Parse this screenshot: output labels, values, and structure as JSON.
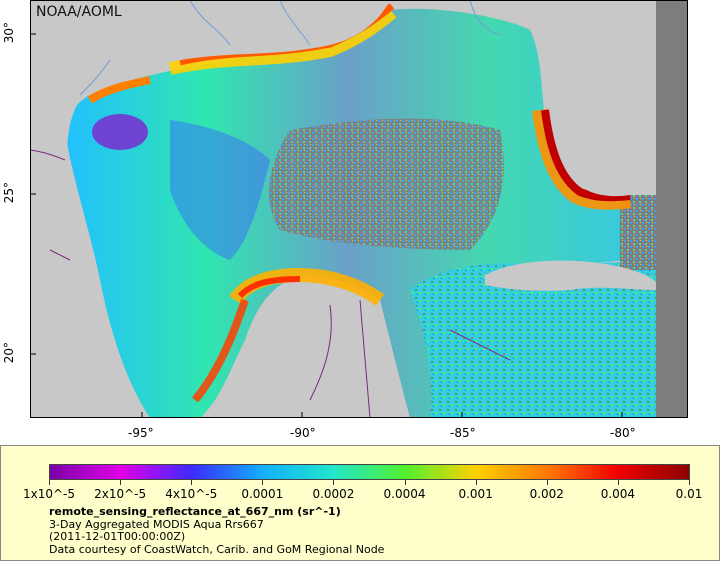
{
  "map": {
    "watermark": "NOAA/AOML",
    "lon_ticks": [
      "-95°",
      "-90°",
      "-85°",
      "-80°"
    ],
    "lat_ticks": [
      "30°",
      "25°",
      "20°"
    ],
    "land_color": "#c8c8c8",
    "no_data_color": "#7d7d7d",
    "boundary_color": "#7a2a7a",
    "river_color": "#6f9fd8"
  },
  "colorbar": {
    "labels": [
      "1x10^-5",
      "2x10^-5",
      "4x10^-5",
      "0.0001",
      "0.0002",
      "0.0004",
      "0.001",
      "0.002",
      "0.004",
      "0.01"
    ],
    "colors": [
      "#7b00a8",
      "#e000e8",
      "#3a2cff",
      "#14b0ff",
      "#22e6c8",
      "#52f030",
      "#ffd000",
      "#ff7a00",
      "#f00000",
      "#8c0000"
    ]
  },
  "legend": {
    "variable": "remote_sensing_reflectance_at_667_nm (sr^-1)",
    "description": "3-Day Aggregated MODIS Aqua Rrs667",
    "time": "(2011-12-01T00:00:00Z)",
    "credit": "Data courtesy of CoastWatch, Carib. and GoM Regional Node"
  }
}
